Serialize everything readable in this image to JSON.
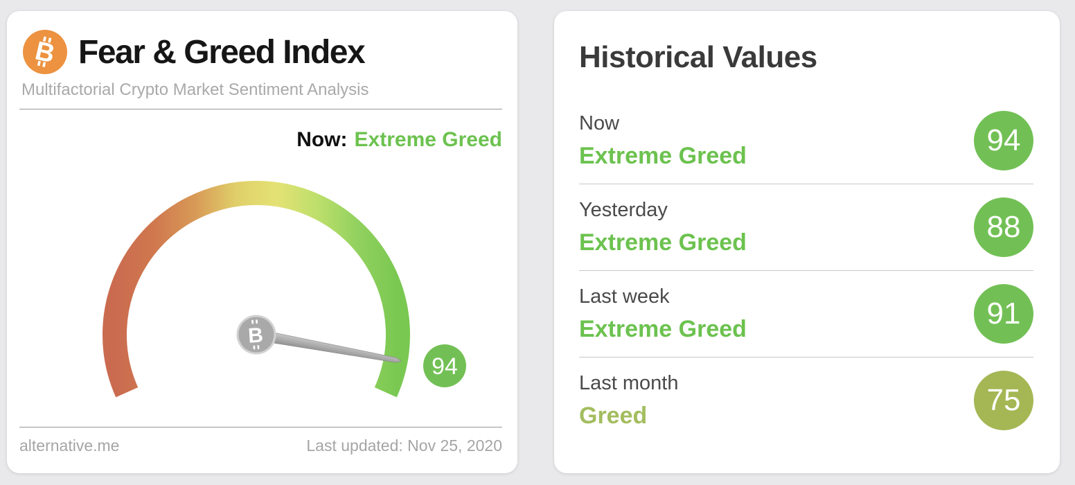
{
  "page": {
    "background_color": "#e9e8ea"
  },
  "left_card": {
    "icon": "bitcoin-icon",
    "icon_color": "#ec9240",
    "title": "Fear & Greed Index",
    "subtitle": "Multifactorial Crypto Market Sentiment Analysis",
    "now_label": "Now:",
    "now_value": "Extreme Greed",
    "now_value_color": "#6cc24f",
    "footer": {
      "source": "alternative.me",
      "last_updated": "Last updated: Nov 25, 2020"
    }
  },
  "right_card": {
    "title": "Historical Values",
    "rows": [
      {
        "label": "Now",
        "value": "Extreme Greed",
        "score": "94",
        "badge_color": "#72c055",
        "value_color": "#6cc24f"
      },
      {
        "label": "Yesterday",
        "value": "Extreme Greed",
        "score": "88",
        "badge_color": "#72c055",
        "value_color": "#6cc24f"
      },
      {
        "label": "Last week",
        "value": "Extreme Greed",
        "score": "91",
        "badge_color": "#72c055",
        "value_color": "#6cc24f"
      },
      {
        "label": "Last month",
        "value": "Greed",
        "score": "75",
        "badge_color": "#a4b754",
        "value_color": "#a3bd5e"
      }
    ]
  },
  "chart_data": {
    "type": "gauge",
    "title": "Fear & Greed Index",
    "value": 94,
    "min": 0,
    "max": 100,
    "current_label": "Extreme Greed",
    "start_angle_deg": 204,
    "sweep_deg": 228,
    "gradient_stops": [
      "#ca6b50",
      "#d0784e",
      "#d89a57",
      "#e0cf6a",
      "#e4e274",
      "#bedf6b",
      "#92d15f",
      "#79c851"
    ],
    "hub_color": "#a9a9a9",
    "badge": {
      "value": "94",
      "color": "#72c055"
    },
    "history": [
      {
        "label": "Now",
        "value": 94,
        "classification": "Extreme Greed"
      },
      {
        "label": "Yesterday",
        "value": 88,
        "classification": "Extreme Greed"
      },
      {
        "label": "Last week",
        "value": 91,
        "classification": "Extreme Greed"
      },
      {
        "label": "Last month",
        "value": 75,
        "classification": "Greed"
      }
    ]
  }
}
